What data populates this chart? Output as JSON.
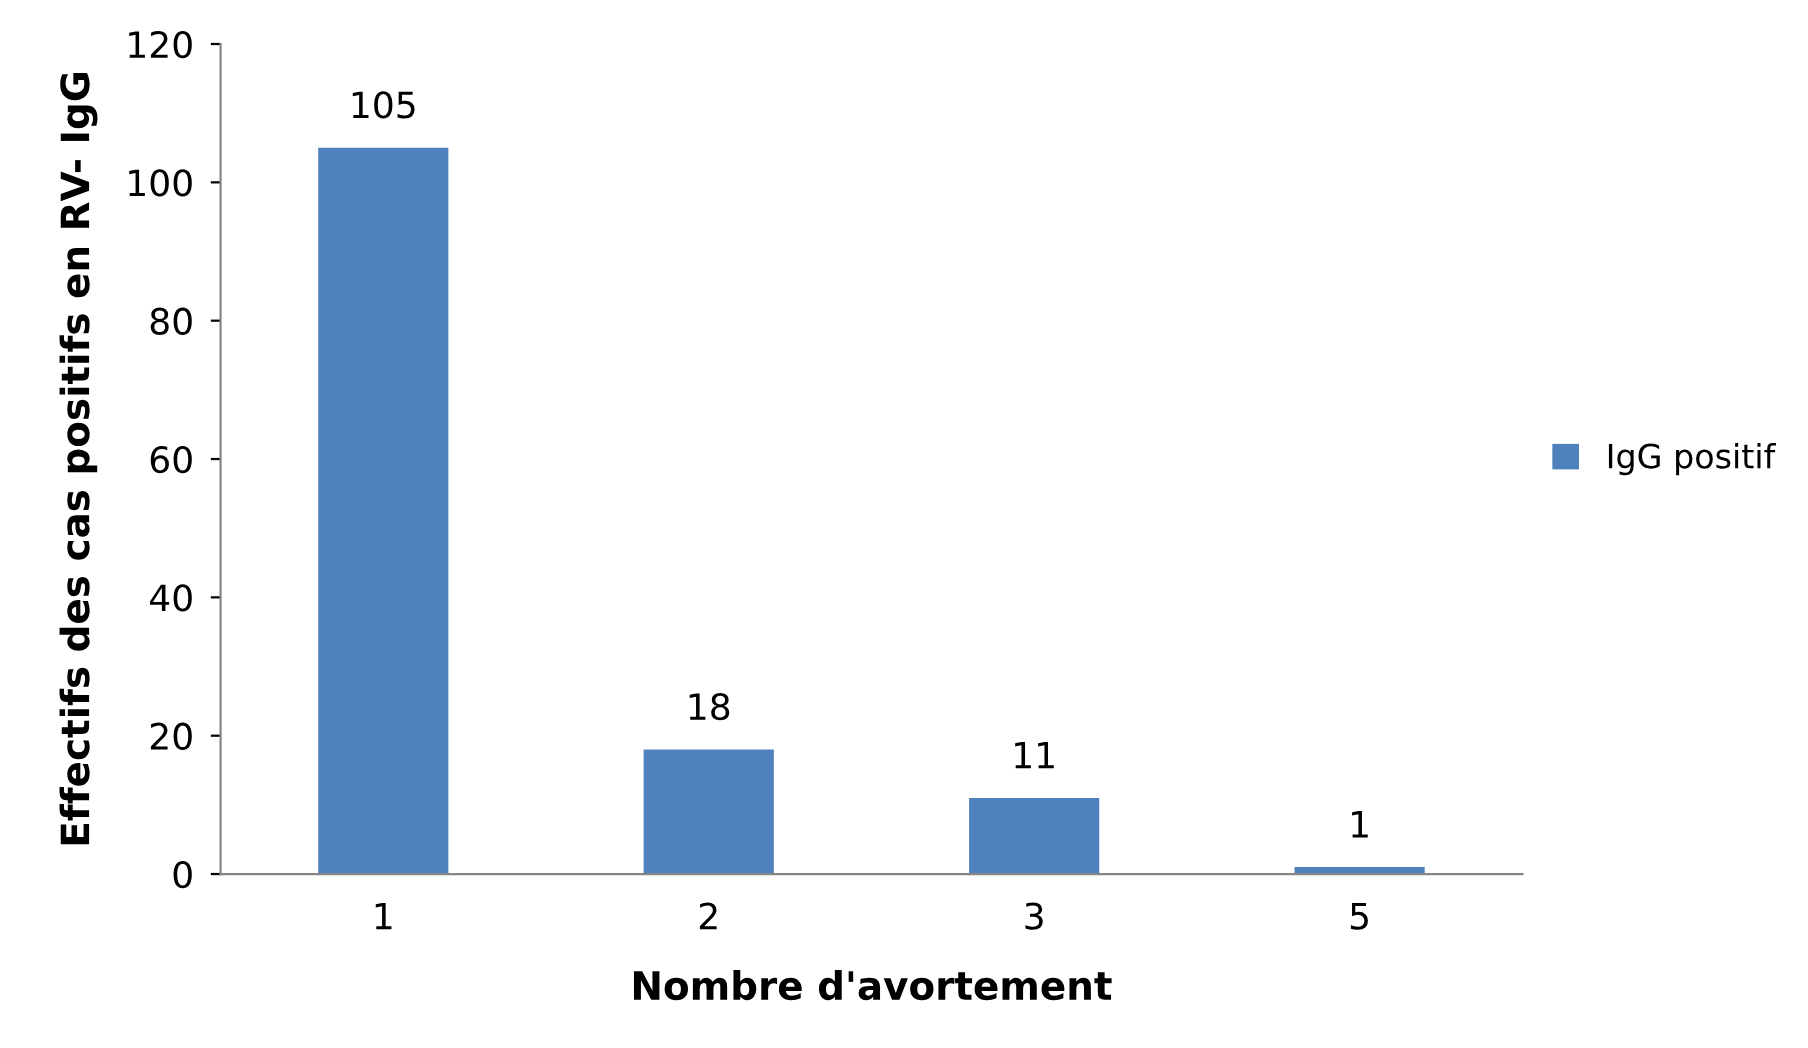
{
  "chart_data": {
    "type": "bar",
    "xlabel": "Nombre d'avortement",
    "ylabel": "Effectifs des cas positifs en RV- IgG",
    "categories": [
      "1",
      "2",
      "3",
      "5"
    ],
    "series": [
      {
        "name": "IgG positif",
        "color": "#4f81bd",
        "values": [
          105,
          18,
          11,
          1
        ]
      }
    ],
    "ylim": [
      0,
      120
    ],
    "yticks": [
      0,
      20,
      40,
      60,
      80,
      100,
      120
    ],
    "data_labels": true,
    "grid": false,
    "legend": "right"
  }
}
